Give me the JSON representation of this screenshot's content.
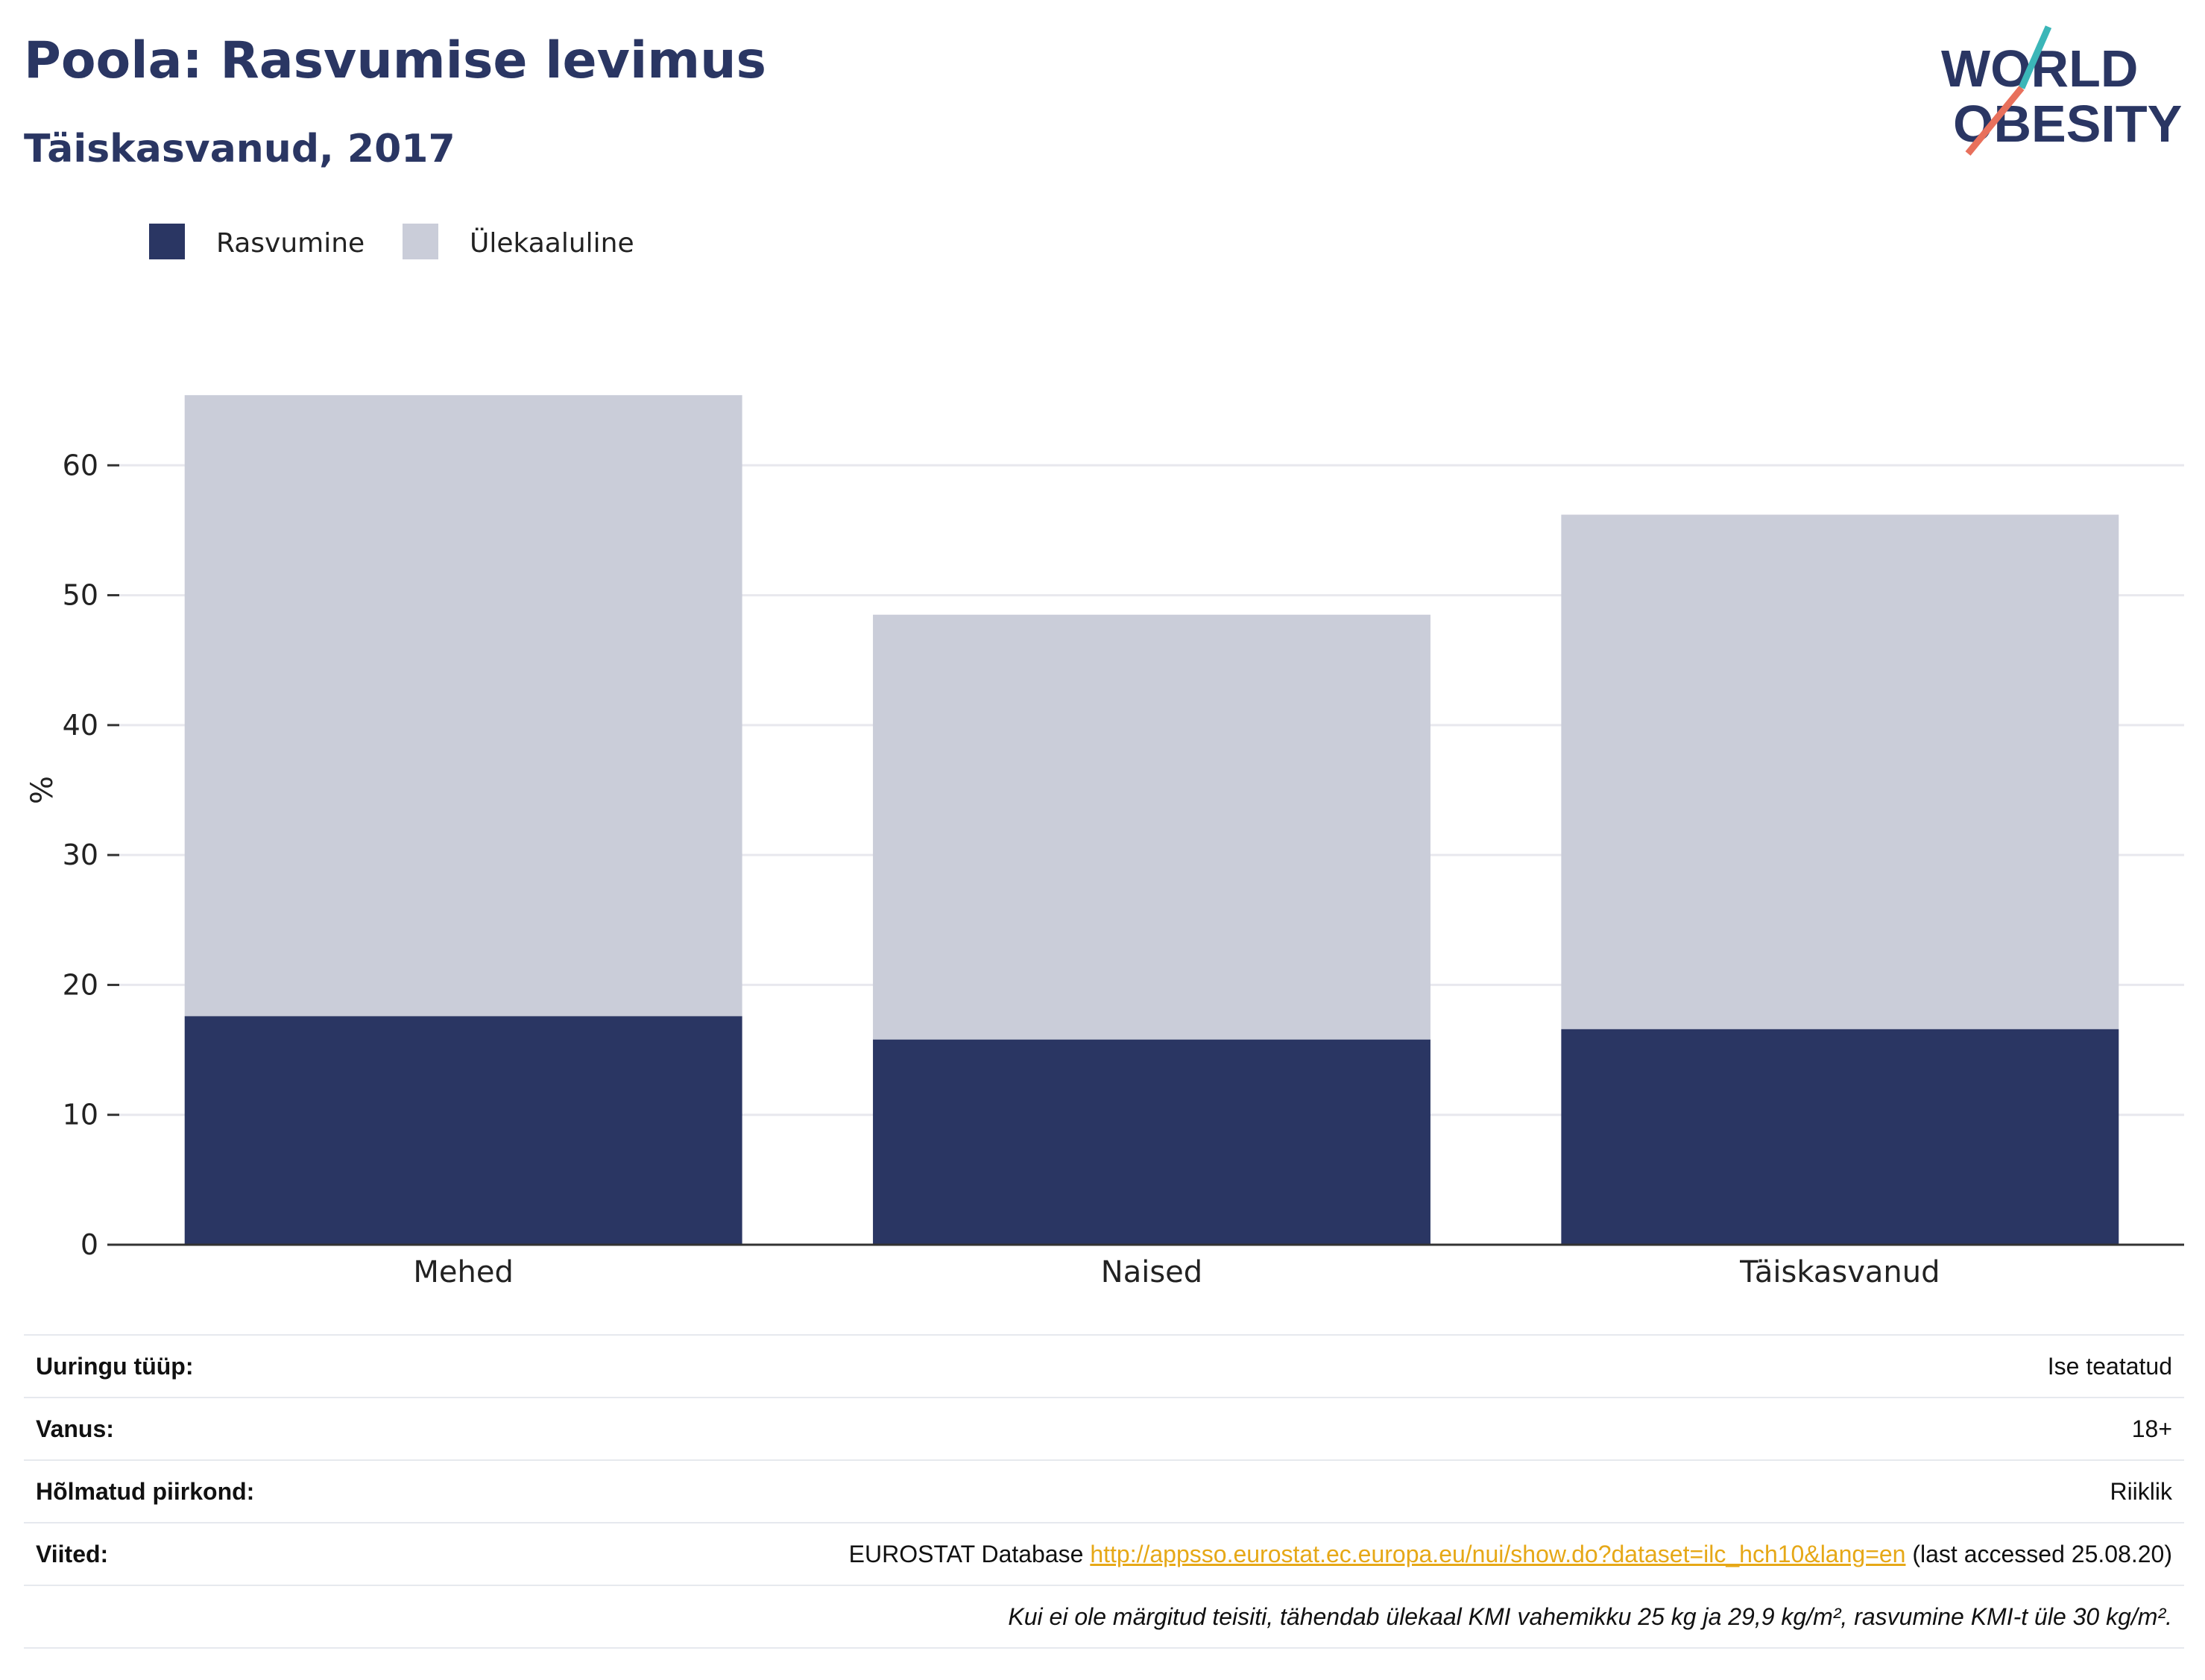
{
  "header": {
    "title": "Poola: Rasvumise levimus",
    "subtitle": "Täiskasvanud, 2017"
  },
  "logo": {
    "line1": "WORLD",
    "line2": "OBESITY",
    "accent": "#e8705c",
    "teal": "#3bb6b8"
  },
  "colors": {
    "obesity": "#2a3663",
    "overweight": "#cacdd9",
    "grid": "#e8e8ee",
    "text": "#2a3663"
  },
  "chart_data": {
    "type": "bar",
    "stacked": true,
    "categories": [
      "Mehed",
      "Naised",
      "Täiskasvanud"
    ],
    "series": [
      {
        "name": "Rasvumine",
        "values": [
          17.6,
          15.8,
          16.6
        ]
      },
      {
        "name": "Ülekaaluline",
        "values": [
          47.8,
          32.7,
          39.6
        ]
      }
    ],
    "ylabel": "%",
    "ylim": [
      0,
      70
    ],
    "yticks": [
      0,
      10,
      20,
      30,
      40,
      50,
      60
    ],
    "grid": true,
    "legend": "top-left"
  },
  "info": {
    "rows": [
      {
        "label": "Uuringu tüüp:",
        "value": "Ise teatatud"
      },
      {
        "label": "Vanus:",
        "value": "18+"
      },
      {
        "label": "Hõlmatud piirkond:",
        "value": "Riiklik"
      }
    ],
    "ref": {
      "label": "Viited:",
      "prefix": "EUROSTAT Database",
      "link": "http://appsso.eurostat.ec.europa.eu/nui/show.do?dataset=ilc_hch10&lang=en",
      "suffix": "(last accessed 25.08.20)"
    },
    "note": "Kui ei ole märgitud teisiti, tähendab ülekaal KMI vahemikku 25 kg ja 29,9 kg/m², rasvumine KMI-t üle 30 kg/m²."
  }
}
